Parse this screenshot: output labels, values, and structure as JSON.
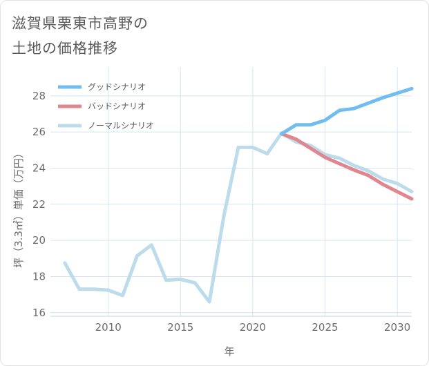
{
  "title_lines": [
    "滋賀県栗東市高野の",
    "土地の価格推移"
  ],
  "chart_data": {
    "type": "line",
    "title": "滋賀県栗東市高野の土地の価格推移",
    "xlabel": "年",
    "ylabel": "坪（3.3㎡）単価（万円）",
    "xlim": [
      2006,
      2031
    ],
    "ylim": [
      15.8,
      29.6
    ],
    "xticks": [
      2010,
      2015,
      2020,
      2025,
      2030
    ],
    "yticks": [
      16,
      18,
      20,
      22,
      24,
      26,
      28
    ],
    "grid": true,
    "legend_position": "top-left",
    "series": [
      {
        "name": "グッドシナリオ",
        "color": "#72bdf0",
        "x": [
          2022,
          2023,
          2024,
          2025,
          2026,
          2027,
          2028,
          2029,
          2030,
          2031
        ],
        "values": [
          25.9,
          26.4,
          26.4,
          26.65,
          27.2,
          27.3,
          27.6,
          27.9,
          28.15,
          28.4
        ]
      },
      {
        "name": "バッドシナリオ",
        "color": "#e0868e",
        "x": [
          2022,
          2023,
          2024,
          2025,
          2026,
          2027,
          2028,
          2029,
          2030,
          2031
        ],
        "values": [
          25.9,
          25.6,
          25.1,
          24.6,
          24.25,
          23.9,
          23.6,
          23.1,
          22.7,
          22.3
        ]
      },
      {
        "name": "ノーマルシナリオ",
        "color": "#bcdcec",
        "x": [
          2007,
          2008,
          2009,
          2010,
          2011,
          2012,
          2013,
          2014,
          2015,
          2016,
          2017,
          2018,
          2019,
          2020,
          2021,
          2022,
          2023,
          2024,
          2025,
          2026,
          2027,
          2028,
          2029,
          2030,
          2031
        ],
        "values": [
          18.75,
          17.3,
          17.3,
          17.25,
          16.95,
          19.15,
          19.75,
          17.8,
          17.85,
          17.65,
          16.6,
          21.35,
          25.15,
          25.15,
          24.8,
          25.95,
          25.45,
          25.25,
          24.75,
          24.55,
          24.15,
          23.85,
          23.4,
          23.15,
          22.7
        ]
      }
    ]
  }
}
